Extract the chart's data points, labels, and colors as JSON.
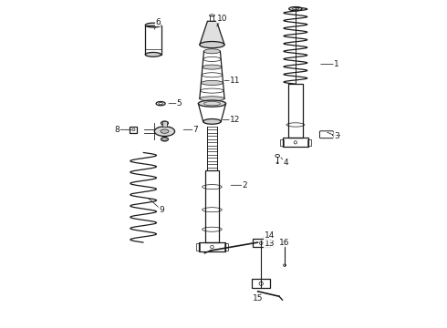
{
  "bg_color": "#ffffff",
  "line_color": "#1a1a1a",
  "figsize": [
    4.9,
    3.6
  ],
  "dpi": 100,
  "label_positions": {
    "1": [
      0.845,
      0.195,
      0.79,
      0.195
    ],
    "2": [
      0.565,
      0.565,
      0.515,
      0.565
    ],
    "3": [
      0.845,
      0.415,
      0.81,
      0.4
    ],
    "4": [
      0.69,
      0.495,
      0.67,
      0.475
    ],
    "5": [
      0.365,
      0.315,
      0.325,
      0.315
    ],
    "6": [
      0.3,
      0.065,
      0.285,
      0.095
    ],
    "7": [
      0.415,
      0.395,
      0.37,
      0.395
    ],
    "8": [
      0.175,
      0.395,
      0.225,
      0.395
    ],
    "9": [
      0.31,
      0.64,
      0.265,
      0.6
    ],
    "10": [
      0.495,
      0.055,
      0.475,
      0.085
    ],
    "11": [
      0.535,
      0.245,
      0.495,
      0.245
    ],
    "12": [
      0.535,
      0.365,
      0.49,
      0.365
    ],
    "13": [
      0.64,
      0.745,
      0.62,
      0.755
    ],
    "14": [
      0.64,
      0.72,
      0.615,
      0.725
    ],
    "15": [
      0.605,
      0.91,
      0.595,
      0.895
    ],
    "16": [
      0.685,
      0.74,
      0.675,
      0.755
    ]
  }
}
